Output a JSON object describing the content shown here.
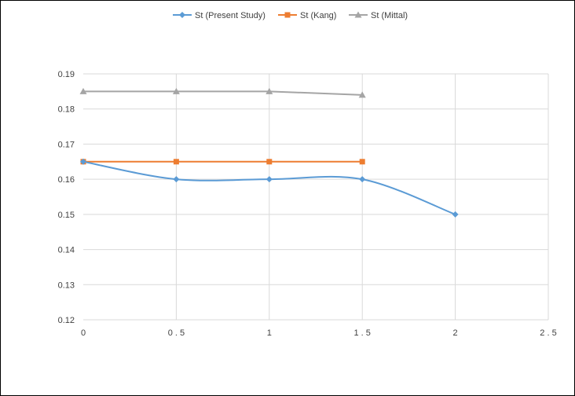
{
  "chart_data": {
    "type": "line",
    "title": "",
    "xlabel": "",
    "ylabel": "",
    "xlim": [
      0,
      2.5
    ],
    "ylim": [
      0.12,
      0.19
    ],
    "x_ticks": [
      "0",
      "0.5",
      "1",
      "1.5",
      "2",
      "2.5"
    ],
    "y_ticks": [
      "0.12",
      "0.13",
      "0.14",
      "0.15",
      "0.16",
      "0.17",
      "0.18",
      "0.19"
    ],
    "grid": true,
    "legend_position": "top",
    "series": [
      {
        "name": "St (Present Study)",
        "color": "#5B9BD5",
        "marker": "diamond",
        "smooth": true,
        "x": [
          0,
          0.5,
          1,
          1.5,
          2
        ],
        "y": [
          0.165,
          0.16,
          0.16,
          0.16,
          0.15
        ]
      },
      {
        "name": "St (Kang)",
        "color": "#ED7D31",
        "marker": "square",
        "smooth": false,
        "x": [
          0,
          0.5,
          1,
          1.5
        ],
        "y": [
          0.165,
          0.165,
          0.165,
          0.165
        ]
      },
      {
        "name": "St (Mittal)",
        "color": "#A5A5A5",
        "marker": "triangle",
        "smooth": false,
        "x": [
          0,
          0.5,
          1,
          1.5
        ],
        "y": [
          0.185,
          0.185,
          0.185,
          0.184
        ]
      }
    ]
  }
}
